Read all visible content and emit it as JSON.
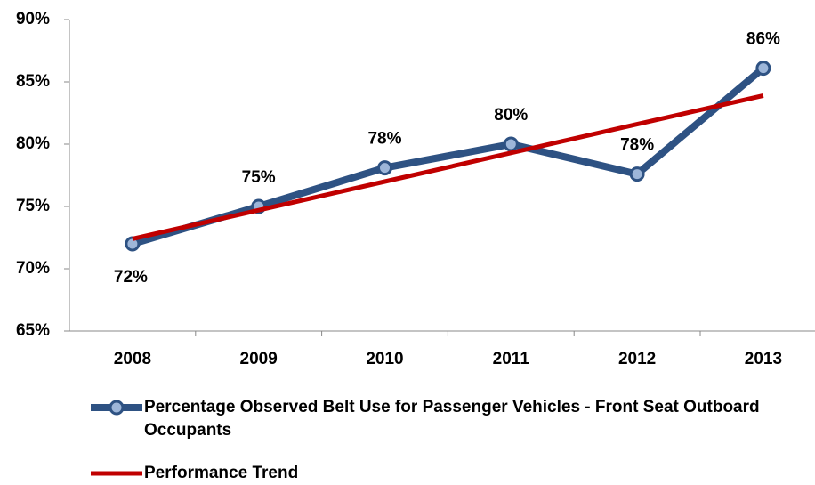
{
  "chart_data": {
    "type": "line",
    "categories": [
      "2008",
      "2009",
      "2010",
      "2011",
      "2012",
      "2013"
    ],
    "series": [
      {
        "name": "Percentage Observed Belt Use for Passenger Vehicles - Front Seat Outboard Occupants",
        "color": "#2e5283",
        "marker_color": "#9db6d9",
        "values": [
          72,
          75,
          78.1,
          80,
          77.6,
          86.1
        ],
        "value_labels": [
          "72%",
          "75%",
          "78%",
          "80%",
          "78%",
          "86%"
        ]
      },
      {
        "name": "Performance Trend",
        "color": "#c00000",
        "values": [
          72.4,
          74.7,
          77.0,
          79.3,
          81.6,
          83.9
        ]
      }
    ],
    "ylim": [
      65,
      90
    ],
    "yticks": [
      {
        "value": 65,
        "label": "65%"
      },
      {
        "value": 70,
        "label": "70%"
      },
      {
        "value": 75,
        "label": "75%"
      },
      {
        "value": 80,
        "label": "80%"
      },
      {
        "value": 85,
        "label": "85%"
      },
      {
        "value": 90,
        "label": "90%"
      }
    ],
    "grid": false
  }
}
